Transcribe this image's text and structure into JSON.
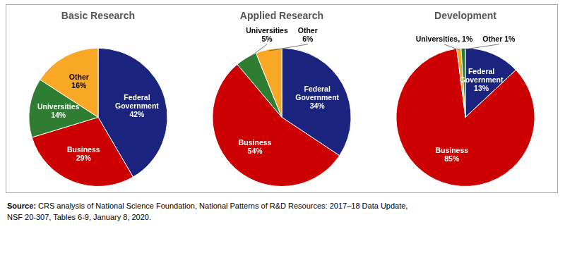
{
  "chart_data": [
    {
      "type": "pie",
      "title": "Basic Research",
      "categories": [
        "Federal Government",
        "Business",
        "Universities",
        "Other"
      ],
      "values": [
        42,
        29,
        14,
        16
      ],
      "value_labels": [
        "Federal\nGovernment\n42%",
        "Business\n29%",
        "Universities\n14%",
        "Other\n16%"
      ],
      "colors": [
        "#1a237e",
        "#cc0000",
        "#2e7d32",
        "#f9a825"
      ],
      "data_labels": true
    },
    {
      "type": "pie",
      "title": "Applied Research",
      "categories": [
        "Federal Government",
        "Business",
        "Universities",
        "Other"
      ],
      "values": [
        34,
        54,
        5,
        6
      ],
      "value_labels": [
        "Federal\nGovernment\n34%",
        "Business\n54%",
        "Universities\n5%",
        "Other\n6%"
      ],
      "colors": [
        "#1a237e",
        "#cc0000",
        "#2e7d32",
        "#f9a825"
      ],
      "data_labels": true
    },
    {
      "type": "pie",
      "title": "Development",
      "categories": [
        "Federal Government",
        "Business",
        "Universities",
        "Other"
      ],
      "values": [
        13,
        85,
        1,
        1
      ],
      "value_labels": [
        "Federal\nGovernment\n13%",
        "Business\n85%",
        "Universities, 1%",
        "Other 1%"
      ],
      "colors": [
        "#1a237e",
        "#cc0000",
        "#f9a825",
        "#2e7d32"
      ],
      "data_labels": true
    }
  ],
  "annotations": [
    "Source: CRS analysis of National Science Foundation, National Patterns of R&D Resources: 2017–18 Data Update,",
    "NSF 20-307, Tables 6-9, January 8, 2020."
  ]
}
